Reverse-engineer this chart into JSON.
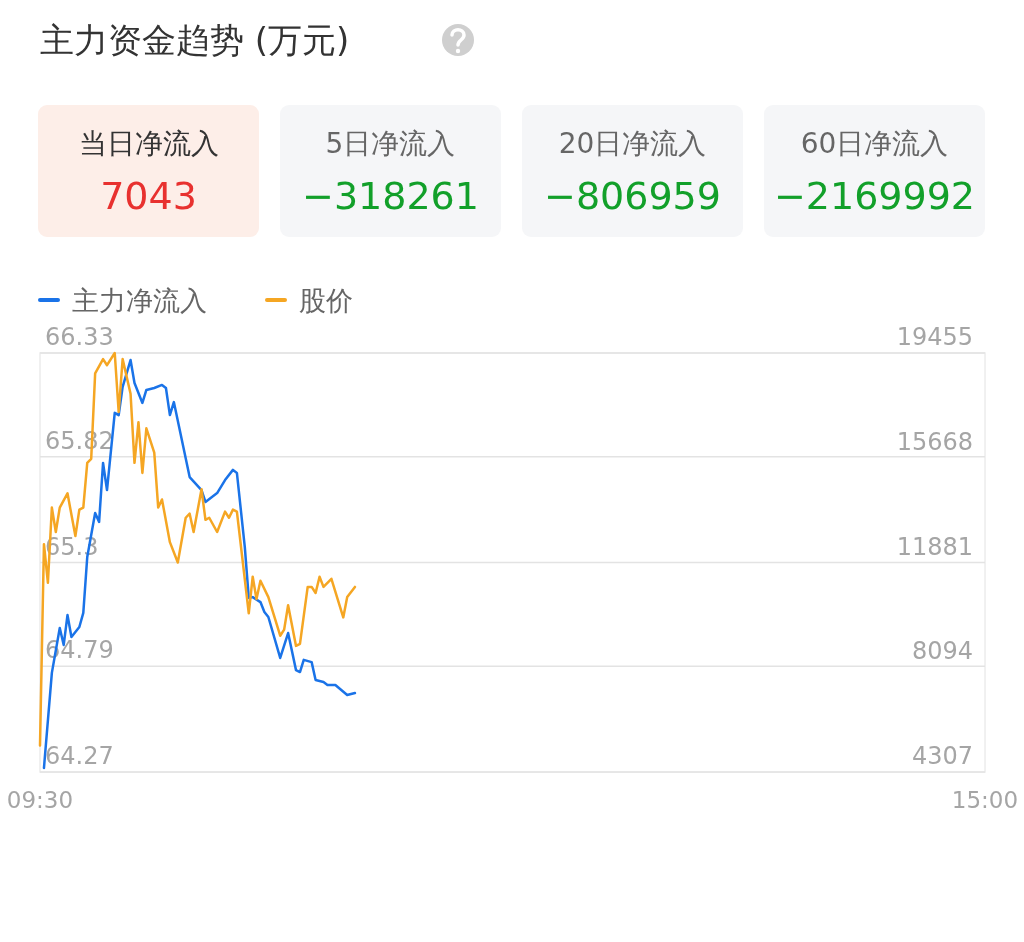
{
  "chart_data": [
    {
      "type": "other",
      "title": "主力资金趋势 (万元)",
      "annotations": [
        "当日净流入",
        "7043",
        "5日净流入",
        "−318261",
        "20日净流入",
        "−806959",
        "60日净流入",
        "−2169992"
      ]
    },
    {
      "type": "line",
      "legend": "top left",
      "grid": "y",
      "marker": "none",
      "line_style": "solid",
      "xlim": [
        9.5,
        15
      ],
      "xticks": [
        {
          "value": 9.5,
          "label": "09:30"
        },
        {
          "value": 15,
          "label": "15:00"
        }
      ],
      "ylim": [
        64.27,
        66.33
      ],
      "yticks": [
        64.27,
        64.79,
        65.3,
        65.82,
        66.33
      ],
      "y2lim": [
        4307,
        19455
      ],
      "y2ticks": [
        4307,
        8094,
        11881,
        15668,
        19455
      ],
      "series": [
        {
          "name": "主力净流入",
          "color": "#1a73e8",
          "axis": "y2",
          "x": [
            9.523,
            9.569,
            9.615,
            9.638,
            9.66,
            9.683,
            9.729,
            9.752,
            9.775,
            9.821,
            9.844,
            9.867,
            9.89,
            9.935,
            9.958,
            9.981,
            10.027,
            10.05,
            10.096,
            10.119,
            10.165,
            10.21,
            10.233,
            10.256,
            10.279,
            10.371,
            10.44,
            10.463,
            10.531,
            10.577,
            10.623,
            10.646,
            10.692,
            10.715,
            10.738,
            10.783,
            10.806,
            10.829,
            10.898,
            10.944,
            10.99,
            11.013,
            11.035,
            11.081,
            11.104,
            11.15,
            11.173,
            11.219,
            11.288,
            11.333
          ],
          "values": [
            4450,
            7890,
            9510,
            8900,
            9980,
            9190,
            9550,
            10060,
            12080,
            13670,
            13350,
            15480,
            14500,
            17290,
            17210,
            18230,
            19200,
            18370,
            17650,
            18120,
            18190,
            18300,
            18190,
            17210,
            17680,
            14970,
            14500,
            14070,
            14390,
            14860,
            15230,
            15120,
            12440,
            10600,
            10630,
            10450,
            10090,
            9910,
            8430,
            9330,
            7990,
            7920,
            8360,
            8280,
            7630,
            7560,
            7450,
            7450,
            7090,
            7160
          ]
        },
        {
          "name": "股价",
          "color": "#f5a623",
          "axis": "y",
          "x": [
            9.5,
            9.523,
            9.546,
            9.569,
            9.592,
            9.615,
            9.66,
            9.706,
            9.729,
            9.752,
            9.775,
            9.798,
            9.821,
            9.867,
            9.89,
            9.935,
            9.958,
            9.981,
            10.027,
            10.05,
            10.073,
            10.096,
            10.119,
            10.165,
            10.188,
            10.21,
            10.256,
            10.302,
            10.348,
            10.371,
            10.394,
            10.44,
            10.463,
            10.485,
            10.531,
            10.577,
            10.6,
            10.623,
            10.646,
            10.715,
            10.738,
            10.76,
            10.783,
            10.829,
            10.898,
            10.921,
            10.944,
            10.99,
            11.013,
            11.058,
            11.081,
            11.104,
            11.127,
            11.15,
            11.196,
            11.265,
            11.288,
            11.333
          ],
          "values": [
            64.4,
            65.39,
            65.2,
            65.57,
            65.45,
            65.57,
            65.64,
            65.43,
            65.56,
            65.57,
            65.79,
            65.81,
            66.23,
            66.3,
            66.27,
            66.33,
            66.04,
            66.3,
            66.13,
            65.79,
            65.99,
            65.74,
            65.96,
            65.84,
            65.57,
            65.61,
            65.4,
            65.3,
            65.52,
            65.54,
            65.45,
            65.66,
            65.51,
            65.52,
            65.45,
            65.55,
            65.52,
            65.56,
            65.55,
            65.05,
            65.23,
            65.12,
            65.21,
            65.13,
            64.94,
            64.97,
            65.09,
            64.89,
            64.9,
            65.18,
            65.18,
            65.15,
            65.23,
            65.18,
            65.22,
            65.03,
            65.13,
            65.18
          ]
        }
      ]
    }
  ]
}
